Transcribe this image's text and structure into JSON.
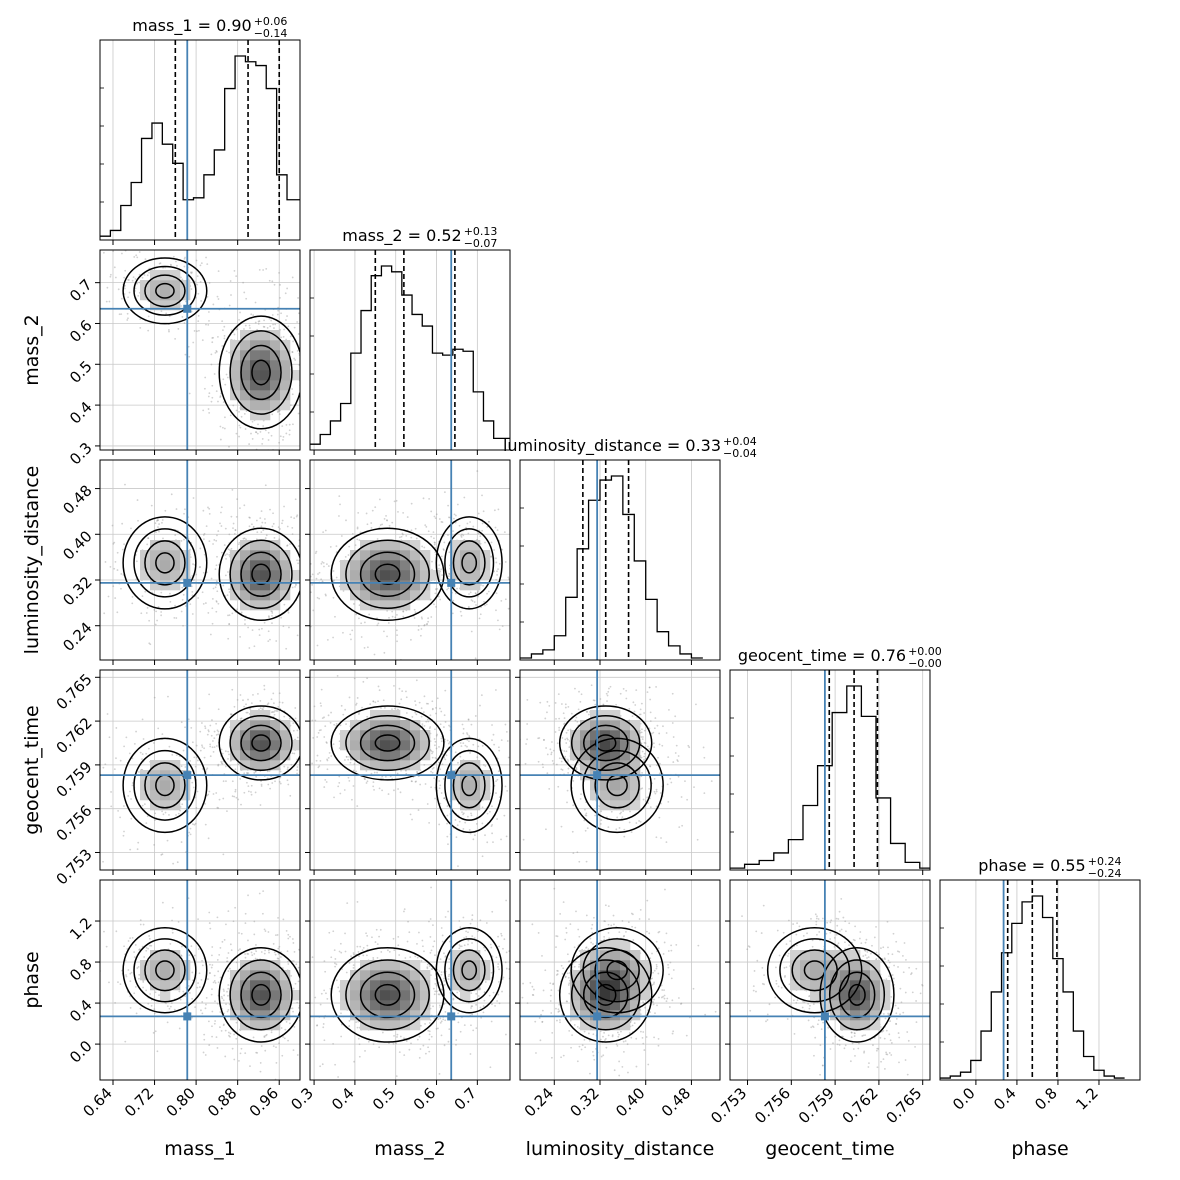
{
  "chart_data": {
    "type": "corner",
    "parameters": [
      "mass_1",
      "mass_2",
      "luminosity_distance",
      "geocent_time",
      "phase"
    ],
    "truth_color": "#4682b4",
    "titles": [
      {
        "parameter": "mass_1",
        "label": "mass_1 = 0.90",
        "upper": "+0.06",
        "lower": "−0.14"
      },
      {
        "parameter": "mass_2",
        "label": "mass_2 = 0.52",
        "upper": "+0.13",
        "lower": "−0.07"
      },
      {
        "parameter": "luminosity_distance",
        "label": "luminosity_distance = 0.33",
        "upper": "+0.04",
        "lower": "−0.04"
      },
      {
        "parameter": "geocent_time",
        "label": "geocent_time = 0.76",
        "upper": "+0.00",
        "lower": "−0.00"
      },
      {
        "parameter": "phase",
        "label": "phase = 0.55",
        "upper": "+0.24",
        "lower": "−0.24"
      }
    ],
    "axes": [
      {
        "name": "mass_1",
        "range": [
          0.615,
          1.0
        ],
        "ticks": [
          0.64,
          0.72,
          0.8,
          0.88,
          0.96
        ],
        "tick_labels": [
          "0.64",
          "0.72",
          "0.80",
          "0.88",
          "0.96"
        ]
      },
      {
        "name": "mass_2",
        "range": [
          0.29,
          0.78
        ],
        "ticks": [
          0.3,
          0.4,
          0.5,
          0.6,
          0.7
        ],
        "tick_labels": [
          "0.3",
          "0.4",
          "0.5",
          "0.6",
          "0.7"
        ]
      },
      {
        "name": "luminosity_distance",
        "range": [
          0.18,
          0.53
        ],
        "ticks": [
          0.24,
          0.32,
          0.4,
          0.48
        ],
        "tick_labels": [
          "0.24",
          "0.32",
          "0.40",
          "0.48"
        ]
      },
      {
        "name": "geocent_time",
        "range": [
          0.7518,
          0.7655
        ],
        "ticks": [
          0.753,
          0.756,
          0.759,
          0.762,
          0.765
        ],
        "tick_labels": [
          "0.753",
          "0.756",
          "0.759",
          "0.762",
          "0.765"
        ]
      },
      {
        "name": "phase",
        "range": [
          -0.35,
          1.6
        ],
        "ticks": [
          0.0,
          0.4,
          0.8,
          1.2
        ],
        "tick_labels": [
          "0.0",
          "0.4",
          "0.8",
          "1.2"
        ]
      }
    ],
    "truths": [
      0.783,
      0.636,
      0.315,
      0.7583,
      0.27
    ],
    "quantiles": [
      [
        0.76,
        0.9,
        0.96
      ],
      [
        0.45,
        0.52,
        0.645
      ],
      [
        0.29,
        0.33,
        0.37
      ],
      [
        0.7586,
        0.7603,
        0.7619
      ],
      [
        0.31,
        0.55,
        0.79
      ]
    ],
    "histograms": [
      {
        "bins": [
          0.615,
          0.635,
          0.655,
          0.675,
          0.695,
          0.715,
          0.735,
          0.755,
          0.775,
          0.795,
          0.815,
          0.835,
          0.855,
          0.875,
          0.895,
          0.915,
          0.935,
          0.955,
          0.975,
          1.0
        ],
        "counts": [
          2,
          5,
          18,
          30,
          53,
          61,
          50,
          40,
          21,
          22,
          34,
          47,
          79,
          96,
          93,
          91,
          79,
          34,
          21
        ]
      },
      {
        "bins": [
          0.29,
          0.315,
          0.34,
          0.365,
          0.39,
          0.415,
          0.44,
          0.465,
          0.49,
          0.515,
          0.54,
          0.565,
          0.59,
          0.615,
          0.64,
          0.665,
          0.69,
          0.715,
          0.74,
          0.78
        ],
        "counts": [
          3,
          8,
          15,
          24,
          50,
          72,
          90,
          95,
          92,
          80,
          70,
          64,
          50,
          49,
          52,
          51,
          30,
          15,
          6
        ]
      },
      {
        "bins": [
          0.18,
          0.2,
          0.22,
          0.24,
          0.26,
          0.28,
          0.3,
          0.32,
          0.34,
          0.36,
          0.38,
          0.4,
          0.42,
          0.44,
          0.46,
          0.48,
          0.5
        ],
        "counts": [
          1,
          3,
          5,
          12,
          31,
          55,
          79,
          89,
          91,
          72,
          49,
          30,
          14,
          7,
          3,
          1
        ]
      },
      {
        "bins": [
          0.7518,
          0.7528,
          0.7538,
          0.7548,
          0.7558,
          0.7568,
          0.7578,
          0.7588,
          0.7598,
          0.7608,
          0.7618,
          0.7628,
          0.7638,
          0.7648,
          0.7655
        ],
        "counts": [
          1,
          3,
          5,
          9,
          16,
          34,
          55,
          83,
          97,
          81,
          38,
          14,
          4,
          1
        ]
      },
      {
        "bins": [
          -0.35,
          -0.25,
          -0.15,
          -0.05,
          0.05,
          0.15,
          0.25,
          0.35,
          0.45,
          0.55,
          0.65,
          0.75,
          0.85,
          0.95,
          1.05,
          1.15,
          1.25,
          1.35,
          1.45
        ],
        "counts": [
          1,
          2,
          4,
          10,
          25,
          45,
          65,
          80,
          91,
          94,
          83,
          62,
          45,
          25,
          12,
          5,
          2,
          1
        ]
      }
    ],
    "density_peaks": [
      {
        "mean": [
          0.74,
          0.68,
          0.35,
          0.7576,
          0.72
        ],
        "std": [
          0.035,
          0.035,
          0.035,
          0.0014,
          0.18
        ],
        "weight": 0.3
      },
      {
        "mean": [
          0.925,
          0.48,
          0.33,
          0.7605,
          0.48
        ],
        "std": [
          0.035,
          0.06,
          0.035,
          0.0011,
          0.2
        ],
        "weight": 0.7
      }
    ],
    "grid": true
  }
}
